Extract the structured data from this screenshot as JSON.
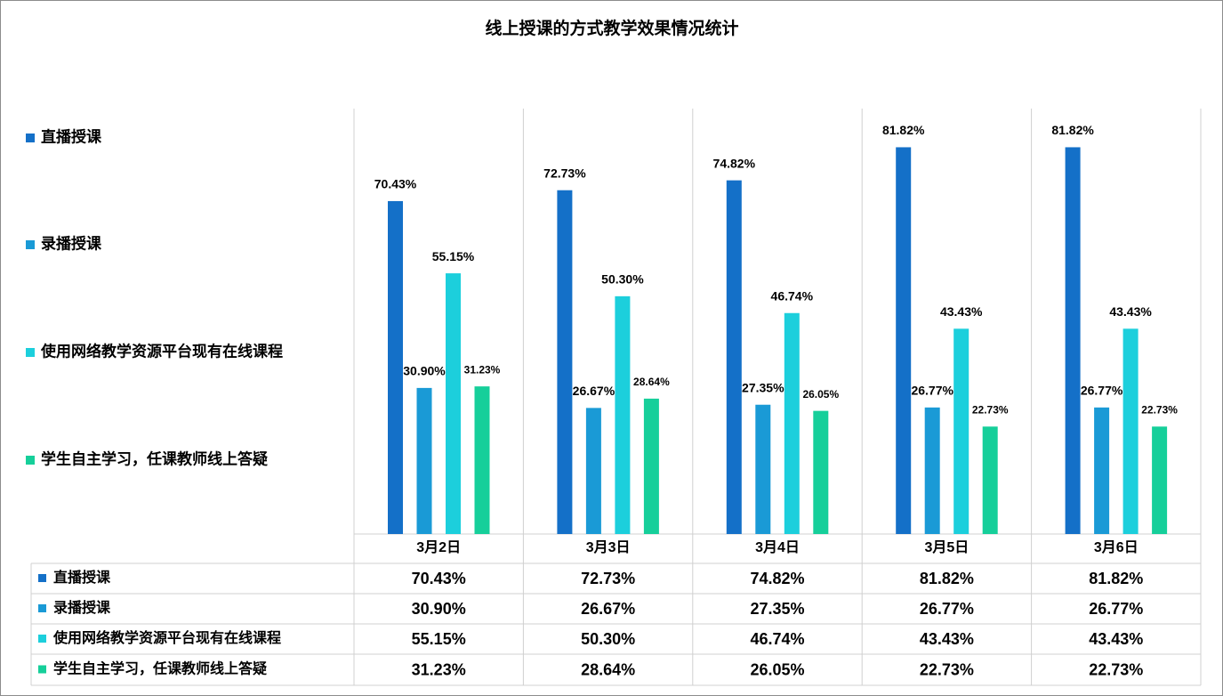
{
  "chart_data": {
    "type": "bar",
    "title": "线上授课的方式教学效果情况统计",
    "categories": [
      "3月2日",
      "3月3日",
      "3月4日",
      "3月5日",
      "3月6日"
    ],
    "ylim": [
      0,
      90
    ],
    "series": [
      {
        "name": "直播授课",
        "color": "#1470c8",
        "values": [
          70.43,
          72.73,
          74.82,
          81.82,
          81.82
        ],
        "value_labels": [
          "70.43%",
          "72.73%",
          "74.82%",
          "81.82%",
          "81.82%"
        ]
      },
      {
        "name": "录播授课",
        "color": "#1a9ad6",
        "values": [
          30.9,
          26.67,
          27.35,
          26.77,
          26.77
        ],
        "value_labels": [
          "30.90%",
          "26.67%",
          "27.35%",
          "26.77%",
          "26.77%"
        ]
      },
      {
        "name": "使用网络教学资源平台现有在线课程",
        "color": "#1ccfdc",
        "values": [
          55.15,
          50.3,
          46.74,
          43.43,
          43.43
        ],
        "value_labels": [
          "55.15%",
          "50.30%",
          "46.74%",
          "43.43%",
          "43.43%"
        ]
      },
      {
        "name": "学生自主学习，任课教师线上答疑",
        "color": "#16cf9a",
        "values": [
          31.23,
          28.64,
          26.05,
          22.73,
          22.73
        ],
        "value_labels": [
          "31.23%",
          "28.64%",
          "26.05%",
          "22.73%",
          "22.73%"
        ]
      }
    ]
  }
}
